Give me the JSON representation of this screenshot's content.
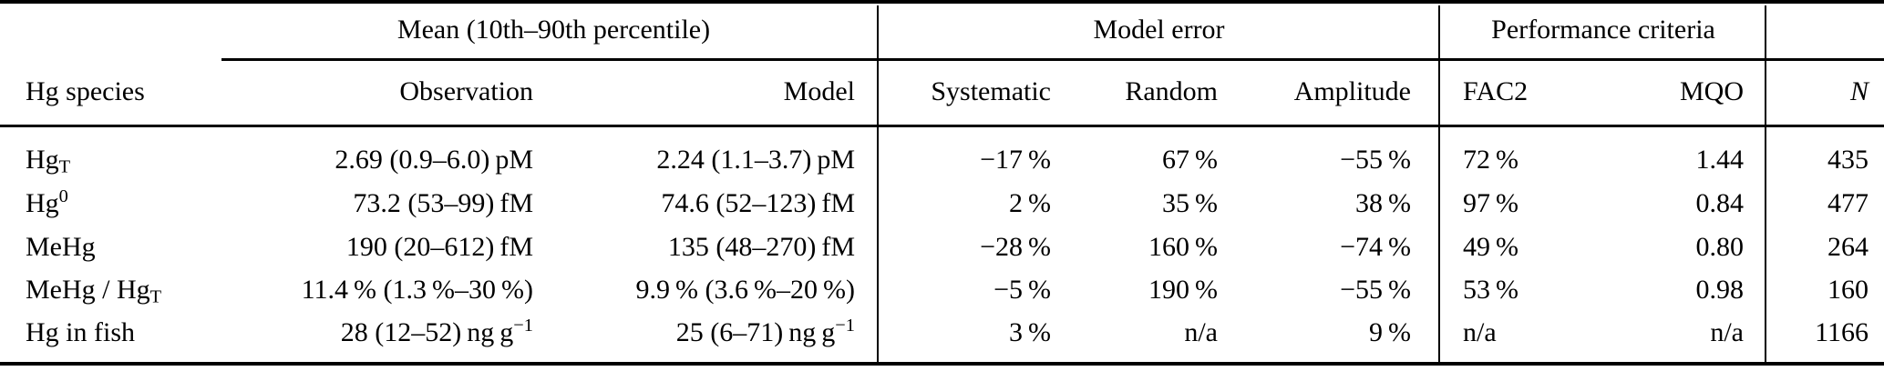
{
  "table": {
    "groups": [
      "Mean (10th–90th percentile)",
      "Model error",
      "Performance criteria"
    ],
    "columns": [
      "Hg species",
      "Observation",
      "Model",
      "Systematic",
      "Random",
      "Amplitude",
      "FAC2",
      "MQO",
      "N"
    ],
    "rows": [
      {
        "species": "Hg_{T}",
        "observation": "2.69 (0.9–6.0) pM",
        "model": "2.24 (1.1–3.7) pM",
        "systematic": "−17 %",
        "random": "67 %",
        "amplitude": "−55 %",
        "fac2": "72 %",
        "mqo": "1.44",
        "n": "435"
      },
      {
        "species": "Hg^{0}",
        "observation": "73.2 (53–99) fM",
        "model": "74.6 (52–123) fM",
        "systematic": "2 %",
        "random": "35 %",
        "amplitude": "38 %",
        "fac2": "97 %",
        "mqo": "0.84",
        "n": "477"
      },
      {
        "species": "MeHg",
        "observation": "190 (20–612) fM",
        "model": "135 (48–270) fM",
        "systematic": "−28 %",
        "random": "160 %",
        "amplitude": "−74 %",
        "fac2": "49 %",
        "mqo": "0.80",
        "n": "264"
      },
      {
        "species": "MeHg / Hg_{T}",
        "observation": "11.4 % (1.3 %–30 %)",
        "model": "9.9 % (3.6 %–20 %)",
        "systematic": "−5 %",
        "random": "190 %",
        "amplitude": "−55 %",
        "fac2": "53 %",
        "mqo": "0.98",
        "n": "160"
      },
      {
        "species": "Hg in fish",
        "observation": "28 (12–52) ng g^{−1}",
        "model": "25 (6–71) ng g^{−1}",
        "systematic": "3 %",
        "random": "n/a",
        "amplitude": "9 %",
        "fac2": "n/a",
        "mqo": "n/a",
        "n": "1166"
      }
    ]
  }
}
